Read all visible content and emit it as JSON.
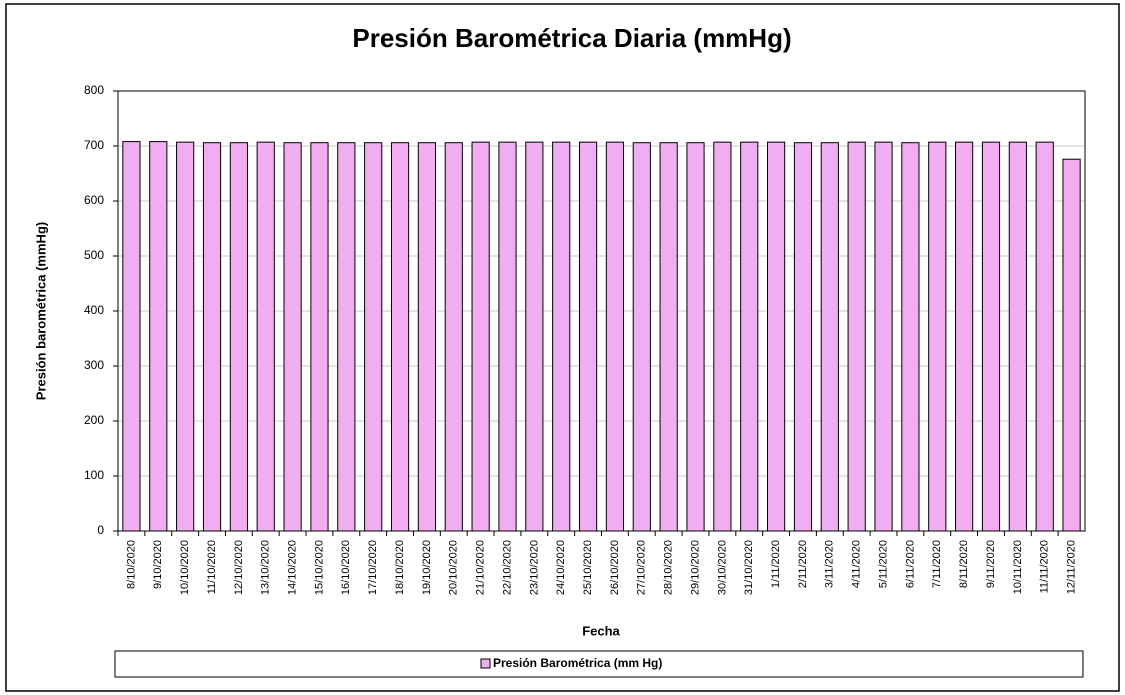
{
  "chart_data": {
    "type": "bar",
    "title": "Presión Barométrica Diaria (mmHg)",
    "x_label": "Fecha",
    "y_label": "Presión barométrica  (mmHg)",
    "categories": [
      "8/10/2020",
      "9/10/2020",
      "10/10/2020",
      "11/10/2020",
      "12/10/2020",
      "13/10/2020",
      "14/10/2020",
      "15/10/2020",
      "16/10/2020",
      "17/10/2020",
      "18/10/2020",
      "19/10/2020",
      "20/10/2020",
      "21/10/2020",
      "22/10/2020",
      "23/10/2020",
      "24/10/2020",
      "25/10/2020",
      "26/10/2020",
      "27/10/2020",
      "28/10/2020",
      "29/10/2020",
      "30/10/2020",
      "31/10/2020",
      "1/11/2020",
      "2/11/2020",
      "3/11/2020",
      "4/11/2020",
      "5/11/2020",
      "6/11/2020",
      "7/11/2020",
      "8/11/2020",
      "9/11/2020",
      "10/11/2020",
      "11/11/2020",
      "12/11/2020"
    ],
    "series": [
      {
        "name": "Presión Barométrica (mm Hg)",
        "color": "#f0aef0",
        "values": [
          708,
          708,
          707,
          706,
          706,
          707,
          706,
          706,
          706,
          706,
          706,
          706,
          706,
          707,
          707,
          707,
          707,
          707,
          707,
          706,
          706,
          706,
          707,
          707,
          707,
          706,
          706,
          707,
          707,
          706,
          707,
          707,
          707,
          707,
          707,
          676
        ]
      }
    ],
    "ylim": [
      0,
      800
    ],
    "yticks": [
      0,
      100,
      200,
      300,
      400,
      500,
      600,
      700,
      800
    ],
    "grid": true,
    "legend": "bottom"
  }
}
